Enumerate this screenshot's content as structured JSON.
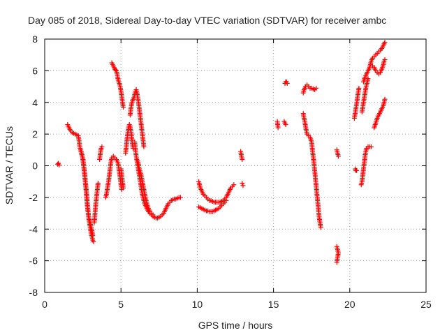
{
  "chart_data": {
    "type": "scatter",
    "title": "Day 085 of 2018, Sidereal Day-to-day VTEC variation (SDTVAR) for receiver ambc",
    "xlabel": "GPS time / hours",
    "ylabel": "SDTVAR / TECUs",
    "xlim": [
      0,
      25
    ],
    "ylim": [
      -8,
      8
    ],
    "xticks": [
      0,
      5,
      10,
      15,
      20,
      25
    ],
    "yticks": [
      -8,
      -6,
      -4,
      -2,
      0,
      2,
      4,
      6,
      8
    ],
    "grid": true,
    "marker": "+",
    "color": "#ff0000",
    "segments": [
      [
        [
          0.85,
          0.1
        ],
        [
          0.9,
          0.15
        ],
        [
          0.95,
          0.05
        ]
      ],
      [
        [
          1.5,
          2.6
        ],
        [
          1.6,
          2.4
        ],
        [
          1.7,
          2.2
        ],
        [
          1.8,
          2.1
        ],
        [
          1.9,
          2.05
        ],
        [
          2.0,
          2.0
        ],
        [
          2.1,
          1.95
        ],
        [
          2.2,
          1.9
        ],
        [
          2.25,
          1.6
        ],
        [
          2.3,
          1.2
        ],
        [
          2.4,
          0.8
        ],
        [
          2.5,
          0.5
        ],
        [
          2.55,
          0.1
        ],
        [
          2.6,
          -0.3
        ],
        [
          2.65,
          -0.8
        ],
        [
          2.7,
          -1.3
        ],
        [
          2.75,
          -1.8
        ],
        [
          2.8,
          -2.4
        ],
        [
          2.85,
          -3.0
        ],
        [
          2.9,
          -3.4
        ],
        [
          2.95,
          -3.7
        ],
        [
          3.0,
          -4.0
        ],
        [
          3.05,
          -4.3
        ],
        [
          3.1,
          -4.5
        ],
        [
          3.15,
          -4.7
        ],
        [
          3.2,
          -4.8
        ]
      ],
      [
        [
          2.4,
          0.9
        ],
        [
          2.5,
          0.4
        ],
        [
          2.6,
          -0.4
        ],
        [
          2.7,
          -1.4
        ],
        [
          2.8,
          -2.6
        ],
        [
          2.9,
          -3.3
        ],
        [
          3.0,
          -3.7
        ],
        [
          3.1,
          -4.1
        ],
        [
          3.15,
          -4.4
        ]
      ],
      [
        [
          3.25,
          -3.6
        ],
        [
          3.3,
          -3.0
        ],
        [
          3.35,
          -2.4
        ],
        [
          3.4,
          -2.0
        ],
        [
          3.45,
          -1.5
        ],
        [
          3.5,
          -1.1
        ]
      ],
      [
        [
          3.6,
          0.4
        ],
        [
          3.65,
          0.8
        ],
        [
          3.7,
          1.1
        ],
        [
          3.75,
          1.2
        ]
      ],
      [
        [
          4.0,
          -2.0
        ],
        [
          4.05,
          -1.8
        ],
        [
          4.1,
          -1.5
        ],
        [
          4.15,
          -1.2
        ],
        [
          4.2,
          -0.9
        ],
        [
          4.25,
          -0.5
        ],
        [
          4.3,
          -0.1
        ],
        [
          4.35,
          0.3
        ],
        [
          4.4,
          0.5
        ],
        [
          4.5,
          0.6
        ],
        [
          4.6,
          0.5
        ],
        [
          4.7,
          0.4
        ],
        [
          4.8,
          0.2
        ],
        [
          4.85,
          -0.1
        ],
        [
          4.9,
          -0.4
        ],
        [
          4.95,
          -0.8
        ],
        [
          5.0,
          -1.2
        ],
        [
          5.05,
          -1.5
        ]
      ],
      [
        [
          5.0,
          -0.2
        ],
        [
          5.05,
          -0.6
        ],
        [
          5.1,
          -1.0
        ],
        [
          5.15,
          -1.4
        ]
      ],
      [
        [
          4.4,
          6.5
        ],
        [
          4.45,
          6.4
        ],
        [
          4.5,
          6.3
        ],
        [
          4.55,
          6.2
        ],
        [
          4.6,
          6.1
        ],
        [
          4.65,
          6.05
        ],
        [
          4.7,
          6.0
        ],
        [
          4.75,
          5.8
        ],
        [
          4.8,
          5.5
        ],
        [
          4.85,
          5.3
        ],
        [
          4.9,
          5.2
        ],
        [
          4.95,
          5.0
        ],
        [
          5.0,
          4.7
        ],
        [
          5.05,
          4.4
        ],
        [
          5.1,
          4.0
        ],
        [
          5.15,
          3.7
        ]
      ],
      [
        [
          5.3,
          0.8
        ],
        [
          5.35,
          1.2
        ],
        [
          5.4,
          1.7
        ],
        [
          5.45,
          2.1
        ],
        [
          5.5,
          2.4
        ],
        [
          5.55,
          2.6
        ],
        [
          5.6,
          2.5
        ],
        [
          5.65,
          2.2
        ],
        [
          5.7,
          1.8
        ],
        [
          5.75,
          1.4
        ],
        [
          5.8,
          1.1
        ]
      ],
      [
        [
          5.6,
          3.2
        ],
        [
          5.65,
          3.6
        ],
        [
          5.7,
          3.9
        ],
        [
          5.75,
          4.1
        ],
        [
          5.8,
          4.2
        ],
        [
          5.85,
          4.3
        ],
        [
          5.9,
          4.5
        ],
        [
          5.95,
          4.7
        ],
        [
          6.0,
          4.8
        ],
        [
          6.05,
          4.6
        ],
        [
          6.1,
          4.3
        ],
        [
          6.15,
          4.0
        ],
        [
          6.2,
          3.6
        ],
        [
          6.25,
          3.2
        ],
        [
          6.3,
          2.8
        ],
        [
          6.35,
          2.4
        ],
        [
          6.4,
          2.0
        ],
        [
          6.45,
          1.6
        ],
        [
          6.5,
          1.2
        ]
      ],
      [
        [
          5.9,
          1.5
        ],
        [
          5.95,
          1.0
        ],
        [
          6.0,
          0.6
        ],
        [
          6.05,
          0.3
        ],
        [
          6.1,
          0.0
        ],
        [
          6.15,
          -0.3
        ],
        [
          6.2,
          -0.6
        ],
        [
          6.25,
          -0.9
        ],
        [
          6.3,
          -1.2
        ],
        [
          6.35,
          -1.5
        ],
        [
          6.4,
          -1.8
        ],
        [
          6.45,
          -2.0
        ],
        [
          6.5,
          -2.2
        ],
        [
          6.55,
          -2.4
        ],
        [
          6.6,
          -2.5
        ],
        [
          6.65,
          -2.6
        ],
        [
          6.7,
          -2.7
        ],
        [
          6.75,
          -2.8
        ],
        [
          6.8,
          -2.9
        ],
        [
          6.9,
          -3.0
        ],
        [
          7.0,
          -3.1
        ],
        [
          7.1,
          -3.2
        ],
        [
          7.2,
          -3.25
        ],
        [
          7.3,
          -3.3
        ],
        [
          7.4,
          -3.3
        ],
        [
          7.5,
          -3.25
        ],
        [
          7.6,
          -3.2
        ],
        [
          7.7,
          -3.1
        ],
        [
          7.8,
          -3.0
        ],
        [
          7.9,
          -2.8
        ],
        [
          8.0,
          -2.6
        ],
        [
          8.1,
          -2.4
        ],
        [
          8.2,
          -2.3
        ],
        [
          8.3,
          -2.2
        ],
        [
          8.4,
          -2.15
        ],
        [
          8.5,
          -2.1
        ],
        [
          8.6,
          -2.1
        ],
        [
          8.7,
          -2.05
        ],
        [
          8.8,
          -2.0
        ],
        [
          8.9,
          -2.0
        ]
      ],
      [
        [
          6.1,
          0.3
        ],
        [
          6.15,
          0.1
        ],
        [
          6.2,
          -0.2
        ],
        [
          6.3,
          -0.5
        ],
        [
          6.4,
          -1.0
        ],
        [
          6.5,
          -1.5
        ],
        [
          6.6,
          -2.0
        ],
        [
          6.7,
          -2.4
        ],
        [
          6.8,
          -2.7
        ],
        [
          6.9,
          -2.9
        ],
        [
          7.0,
          -3.0
        ],
        [
          7.1,
          -3.1
        ]
      ],
      [
        [
          10.1,
          -1.0
        ],
        [
          10.15,
          -1.2
        ],
        [
          10.2,
          -1.4
        ],
        [
          10.3,
          -1.6
        ],
        [
          10.4,
          -1.8
        ],
        [
          10.5,
          -1.9
        ],
        [
          10.6,
          -2.0
        ],
        [
          10.7,
          -2.1
        ],
        [
          10.8,
          -2.2
        ],
        [
          10.9,
          -2.2
        ],
        [
          11.0,
          -2.25
        ],
        [
          11.1,
          -2.3
        ],
        [
          11.2,
          -2.3
        ],
        [
          11.3,
          -2.3
        ],
        [
          11.4,
          -2.3
        ],
        [
          11.5,
          -2.3
        ],
        [
          11.6,
          -2.25
        ],
        [
          11.7,
          -2.2
        ],
        [
          11.8,
          -2.1
        ],
        [
          11.9,
          -2.0
        ],
        [
          12.0,
          -1.8
        ],
        [
          12.1,
          -1.6
        ],
        [
          12.2,
          -1.4
        ],
        [
          12.3,
          -1.3
        ],
        [
          12.4,
          -1.2
        ]
      ],
      [
        [
          10.1,
          -2.6
        ],
        [
          10.2,
          -2.65
        ],
        [
          10.3,
          -2.7
        ],
        [
          10.4,
          -2.75
        ],
        [
          10.5,
          -2.8
        ],
        [
          10.6,
          -2.85
        ],
        [
          10.7,
          -2.85
        ],
        [
          10.8,
          -2.9
        ],
        [
          10.9,
          -2.9
        ],
        [
          11.0,
          -2.9
        ],
        [
          11.1,
          -2.85
        ],
        [
          11.2,
          -2.8
        ],
        [
          11.3,
          -2.75
        ],
        [
          11.4,
          -2.7
        ],
        [
          11.5,
          -2.6
        ],
        [
          11.6,
          -2.5
        ],
        [
          11.7,
          -2.4
        ],
        [
          11.8,
          -2.3
        ],
        [
          11.9,
          -2.2
        ]
      ],
      [
        [
          12.85,
          0.9
        ],
        [
          12.9,
          0.6
        ],
        [
          12.95,
          0.4
        ]
      ],
      [
        [
          12.95,
          -1.1
        ],
        [
          13.0,
          -1.25
        ]
      ],
      [
        [
          15.25,
          2.8
        ],
        [
          15.3,
          2.4
        ]
      ],
      [
        [
          15.7,
          2.8
        ],
        [
          15.75,
          2.7
        ],
        [
          15.8,
          2.6
        ]
      ],
      [
        [
          15.75,
          5.2
        ],
        [
          15.8,
          5.3
        ],
        [
          15.85,
          5.3
        ],
        [
          15.9,
          5.2
        ]
      ],
      [
        [
          16.95,
          3.3
        ],
        [
          17.0,
          3.0
        ],
        [
          17.05,
          2.8
        ],
        [
          17.1,
          2.5
        ],
        [
          17.15,
          2.2
        ],
        [
          17.2,
          2.0
        ],
        [
          17.3,
          1.9
        ],
        [
          17.4,
          1.8
        ],
        [
          17.5,
          1.5
        ],
        [
          17.55,
          1.0
        ],
        [
          17.6,
          0.6
        ],
        [
          17.65,
          0.2
        ],
        [
          17.7,
          -0.3
        ],
        [
          17.75,
          -0.8
        ],
        [
          17.8,
          -1.3
        ],
        [
          17.85,
          -1.8
        ],
        [
          17.9,
          -2.3
        ],
        [
          17.95,
          -2.8
        ],
        [
          18.0,
          -3.3
        ],
        [
          18.05,
          -3.6
        ],
        [
          18.1,
          -3.9
        ]
      ],
      [
        [
          16.95,
          4.6
        ],
        [
          17.0,
          4.8
        ],
        [
          17.1,
          5.0
        ],
        [
          17.2,
          5.1
        ],
        [
          17.3,
          5.0
        ],
        [
          17.4,
          4.9
        ],
        [
          17.5,
          4.9
        ],
        [
          17.6,
          4.85
        ],
        [
          17.7,
          4.8
        ],
        [
          17.8,
          4.9
        ]
      ],
      [
        [
          19.15,
          1.0
        ],
        [
          19.2,
          0.8
        ],
        [
          19.25,
          0.6
        ]
      ],
      [
        [
          19.15,
          -5.1
        ],
        [
          19.2,
          -5.3
        ],
        [
          19.25,
          -5.5
        ],
        [
          19.2,
          -5.8
        ],
        [
          19.15,
          -6.1
        ]
      ],
      [
        [
          20.3,
          3.0
        ],
        [
          20.35,
          3.3
        ],
        [
          20.4,
          3.6
        ],
        [
          20.45,
          3.9
        ],
        [
          20.5,
          4.3
        ],
        [
          20.55,
          4.6
        ],
        [
          20.6,
          4.9
        ]
      ],
      [
        [
          20.35,
          -0.2
        ],
        [
          20.4,
          -0.3
        ],
        [
          20.45,
          -0.3
        ]
      ],
      [
        [
          20.75,
          -1.2
        ],
        [
          20.8,
          -1.0
        ],
        [
          20.85,
          -0.6
        ],
        [
          20.9,
          -0.2
        ],
        [
          20.95,
          0.2
        ],
        [
          21.0,
          0.6
        ],
        [
          21.05,
          0.9
        ],
        [
          21.1,
          1.1
        ],
        [
          21.2,
          1.2
        ],
        [
          21.3,
          1.2
        ],
        [
          21.4,
          1.2
        ]
      ],
      [
        [
          20.8,
          3.4
        ],
        [
          20.85,
          3.7
        ],
        [
          20.9,
          4.0
        ],
        [
          20.95,
          4.3
        ],
        [
          21.0,
          4.6
        ],
        [
          21.05,
          4.9
        ],
        [
          21.1,
          5.1
        ],
        [
          21.15,
          5.3
        ],
        [
          21.2,
          5.5
        ]
      ],
      [
        [
          20.9,
          5.3
        ],
        [
          21.0,
          5.6
        ],
        [
          21.1,
          5.8
        ],
        [
          21.2,
          6.0
        ],
        [
          21.3,
          6.2
        ],
        [
          21.4,
          6.6
        ],
        [
          21.5,
          6.8
        ],
        [
          21.6,
          6.9
        ],
        [
          21.7,
          7.0
        ],
        [
          21.8,
          7.1
        ],
        [
          21.9,
          7.2
        ],
        [
          22.0,
          7.3
        ],
        [
          22.1,
          7.4
        ],
        [
          22.15,
          7.5
        ],
        [
          22.2,
          7.6
        ],
        [
          22.25,
          7.7
        ],
        [
          22.3,
          7.8
        ]
      ],
      [
        [
          21.5,
          6.3
        ],
        [
          21.6,
          6.2
        ],
        [
          21.7,
          6.0
        ],
        [
          21.8,
          5.9
        ],
        [
          21.9,
          5.8
        ],
        [
          22.0,
          5.9
        ],
        [
          22.1,
          6.1
        ],
        [
          22.2,
          6.4
        ],
        [
          22.25,
          6.6
        ],
        [
          22.3,
          6.7
        ]
      ],
      [
        [
          21.6,
          2.4
        ],
        [
          21.7,
          2.7
        ],
        [
          21.8,
          3.0
        ],
        [
          21.9,
          3.2
        ],
        [
          22.0,
          3.4
        ],
        [
          22.1,
          3.6
        ],
        [
          22.2,
          3.8
        ],
        [
          22.25,
          4.0
        ],
        [
          22.3,
          4.2
        ]
      ]
    ]
  }
}
